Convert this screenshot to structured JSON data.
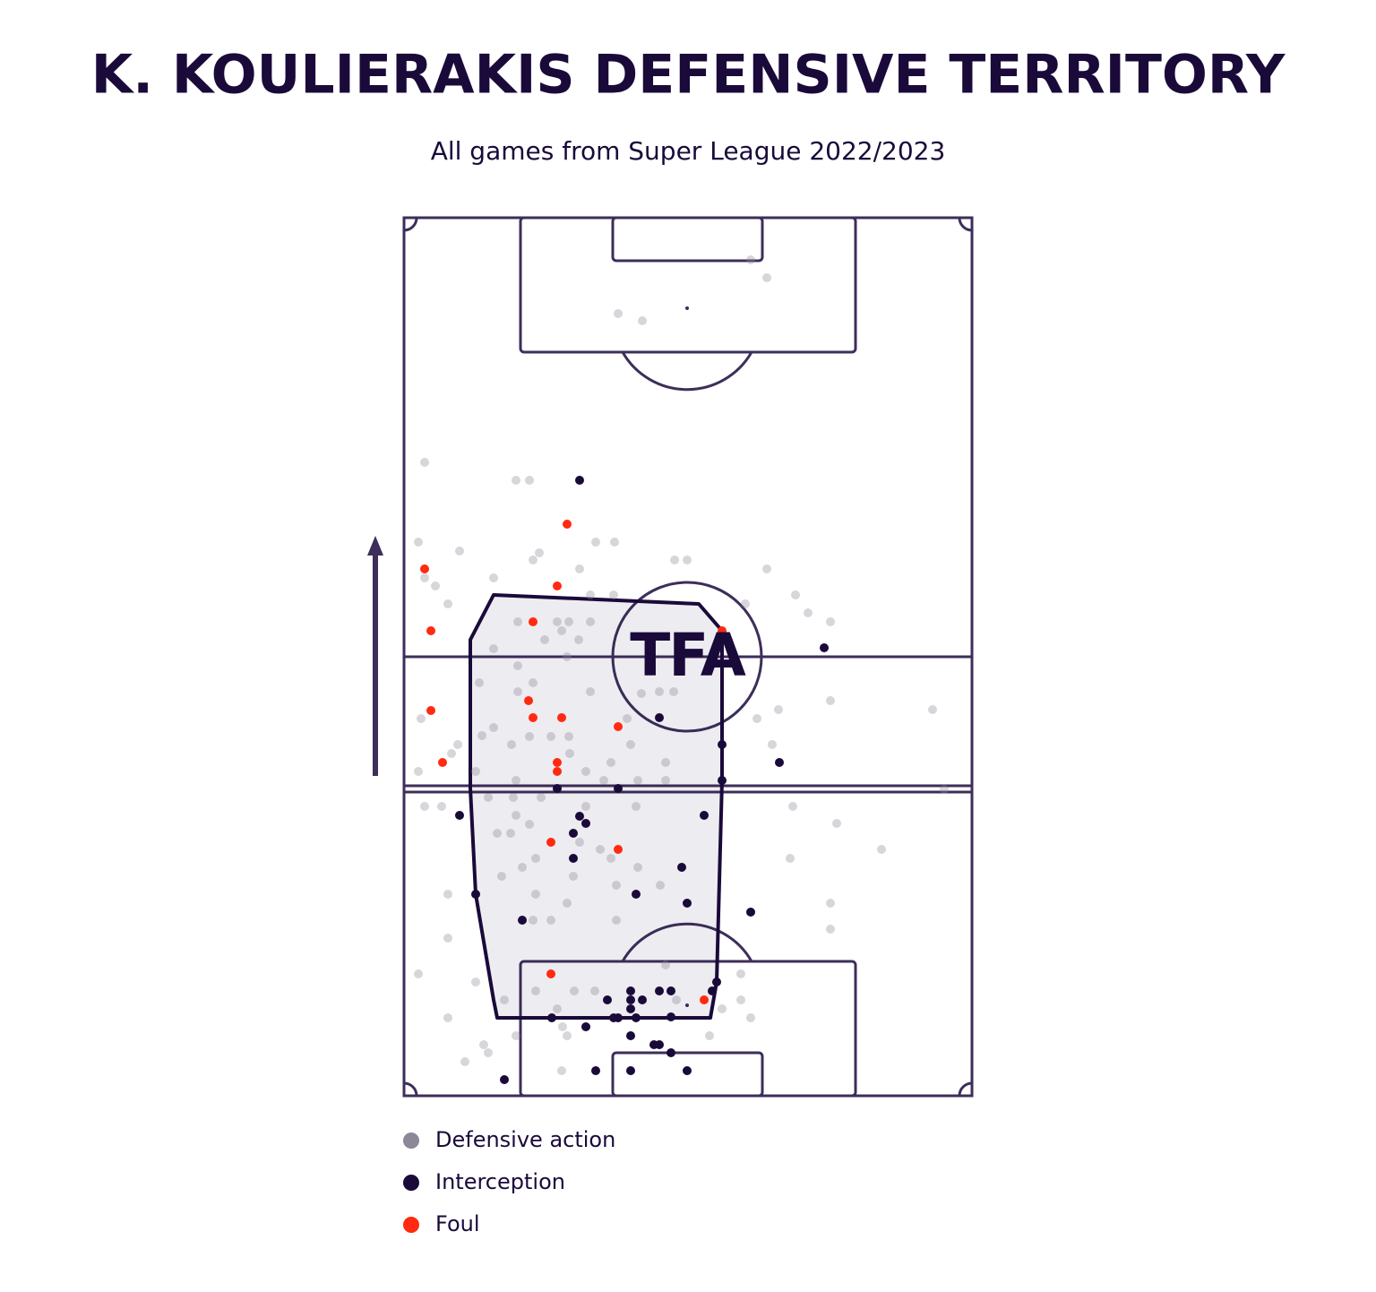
{
  "chart_data": {
    "type": "scatter",
    "title": "K. KOULIERAKIS DEFENSIVE TERRITORY",
    "subtitle": "All games from Super League 2022/2023",
    "watermark": "TFA",
    "xlim": [
      0,
      634
    ],
    "ylim": [
      0,
      980
    ],
    "territory": {
      "color": "#1a0a3a",
      "x": [
        100,
        329,
        355,
        355,
        349,
        342,
        104,
        100,
        80,
        74,
        74
      ],
      "y": [
        559,
        549,
        519,
        352,
        127,
        87,
        87,
        107,
        225,
        343,
        509
      ]
    },
    "series": [
      {
        "name": "Defensive action",
        "color": "#8e8798",
        "x": [
          387,
          405,
          239,
          266,
          23,
          125,
          140,
          16,
          151,
          214,
          235,
          62,
          23,
          302,
          316,
          144,
          196,
          405,
          100,
          35,
          208,
          234,
          49,
          437,
          381,
          451,
          127,
          171,
          184,
          208,
          476,
          176,
          157,
          195,
          100,
          182,
          127,
          144,
          84,
          127,
          208,
          265,
          285,
          301,
          19,
          418,
          476,
          590,
          249,
          394,
          100,
          140,
          184,
          164,
          120,
          60,
          253,
          411,
          53,
          87,
          185,
          231,
          292,
          16,
          80,
          203,
          125,
          223,
          261,
          292,
          42,
          23,
          94,
          122,
          153,
          203,
          259,
          434,
          125,
          140,
          483,
          119,
          104,
          196,
          533,
          219,
          147,
          231,
          431,
          132,
          261,
          109,
          189,
          286,
          237,
          49,
          147,
          476,
          237,
          144,
          164,
          182,
          476,
          49,
          16,
          292,
          376,
          80,
          147,
          190,
          304,
          376,
          213,
          49,
          112,
          387,
          171,
          355,
          177,
          182,
          125,
          341,
          89,
          94,
          68,
          176,
          603
        ],
        "y": [
          933,
          913,
          873,
          865,
          707,
          687,
          687,
          618,
          606,
          618,
          618,
          608,
          578,
          598,
          598,
          598,
          588,
          588,
          578,
          569,
          559,
          559,
          549,
          559,
          549,
          539,
          529,
          529,
          529,
          529,
          529,
          519,
          509,
          509,
          499,
          490,
          480,
          461,
          461,
          451,
          451,
          449,
          451,
          451,
          421,
          431,
          441,
          431,
          421,
          421,
          411,
          401,
          401,
          401,
          392,
          392,
          392,
          392,
          382,
          402,
          382,
          372,
          372,
          362,
          362,
          362,
          352,
          352,
          352,
          352,
          323,
          323,
          333,
          333,
          333,
          323,
          323,
          323,
          313,
          303,
          304,
          293,
          293,
          283,
          275,
          275,
          265,
          265,
          265,
          255,
          255,
          245,
          245,
          235,
          235,
          225,
          225,
          215,
          196,
          196,
          196,
          215,
          186,
          176,
          136,
          146,
          136,
          127,
          117,
          117,
          107,
          107,
          117,
          87,
          107,
          87,
          97,
          97,
          77,
          67,
          67,
          67,
          57,
          48,
          38,
          28,
          342
        ]
      },
      {
        "name": "Interception",
        "color": "#1a0a3a",
        "x": [
          196,
          469,
          285,
          355,
          419,
          355,
          171,
          239,
          62,
          335,
          203,
          196,
          189,
          189,
          310,
          80,
          259,
          316,
          387,
          132,
          349,
          344,
          227,
          253,
          253,
          266,
          285,
          298,
          253,
          298,
          165,
          234,
          239,
          259,
          203,
          253,
          279,
          285,
          298,
          214,
          253,
          316,
          112
        ],
        "y": [
          687,
          500,
          422,
          392,
          372,
          352,
          343,
          343,
          313,
          313,
          304,
          312,
          293,
          265,
          255,
          225,
          225,
          215,
          205,
          196,
          127,
          117,
          107,
          117,
          107,
          107,
          117,
          117,
          97,
          88,
          87,
          87,
          87,
          87,
          77,
          67,
          57,
          57,
          48,
          28,
          28,
          28,
          18
        ]
      },
      {
        "name": "Foul",
        "color": "#ff2a10",
        "x": [
          182,
          23,
          171,
          144,
          30,
          355,
          139,
          30,
          144,
          176,
          239,
          43,
          171,
          171,
          164,
          239,
          164,
          335
        ],
        "y": [
          638,
          588,
          569,
          529,
          519,
          519,
          441,
          430,
          422,
          422,
          412,
          372,
          372,
          362,
          283,
          275,
          136,
          107
        ]
      }
    ]
  }
}
